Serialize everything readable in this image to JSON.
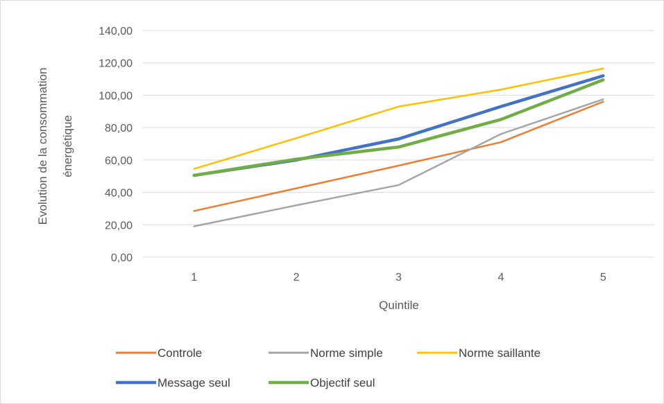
{
  "chart_data": {
    "type": "line",
    "title": "",
    "xlabel": "Quintile",
    "ylabel_lines": [
      "Evolution de la consommation",
      "énergétique"
    ],
    "categories": [
      "1",
      "2",
      "3",
      "4",
      "5"
    ],
    "ylim": [
      0,
      140
    ],
    "yticks": [
      0,
      20,
      40,
      60,
      80,
      100,
      120,
      140
    ],
    "ytick_labels": [
      "0,00",
      "20,00",
      "40,00",
      "60,00",
      "80,00",
      "100,00",
      "120,00",
      "140,00"
    ],
    "grid": true,
    "legend_position": "bottom",
    "series": [
      {
        "name": "Controle",
        "color": "#ED7D31",
        "values": [
          28.5,
          42.5,
          56.5,
          71,
          96
        ]
      },
      {
        "name": "Norme simple",
        "color": "#A5A5A5",
        "values": [
          19,
          32,
          44.5,
          76,
          97.5
        ]
      },
      {
        "name": "Norme saillante",
        "color": "#FFC000",
        "values": [
          54.5,
          73.5,
          93,
          103.5,
          116.5
        ]
      },
      {
        "name": "Message seul",
        "color": "#4472C4",
        "values": [
          50.5,
          60,
          73,
          93,
          112
        ]
      },
      {
        "name": "Objectif seul",
        "color": "#70AD47",
        "values": [
          50.5,
          60.5,
          68,
          85,
          109.5
        ]
      }
    ]
  }
}
